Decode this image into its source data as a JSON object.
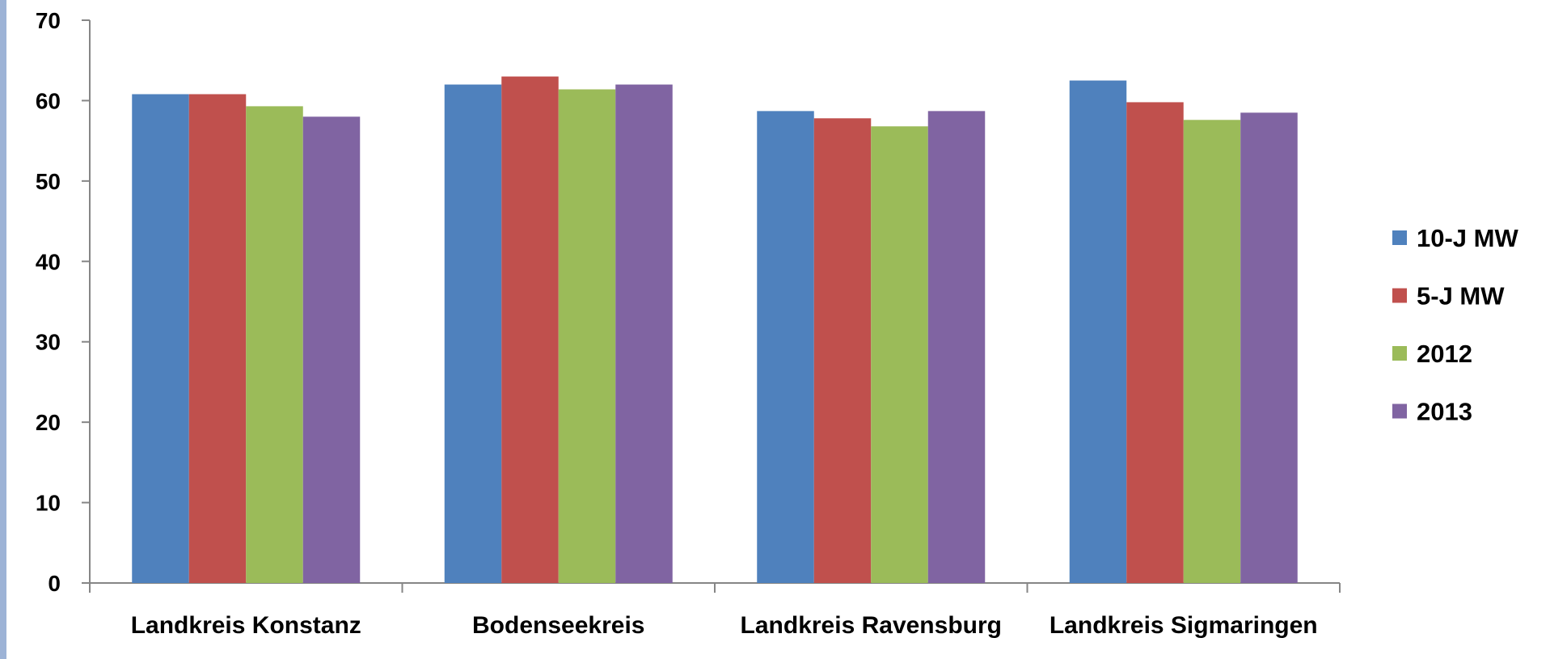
{
  "chart_data": {
    "type": "bar",
    "title": "",
    "xlabel": "",
    "ylabel": "",
    "ylim": [
      0,
      70
    ],
    "yticks": [
      0,
      10,
      20,
      30,
      40,
      50,
      60,
      70
    ],
    "grid": false,
    "legend_position": "right",
    "categories": [
      "Landkreis Konstanz",
      "Bodenseekreis",
      "Landkreis Ravensburg",
      "Landkreis Sigmaringen"
    ],
    "series": [
      {
        "name": "10-J MW",
        "color": "#4F81BD",
        "values": [
          60.8,
          62.0,
          58.7,
          62.5
        ]
      },
      {
        "name": "5-J MW",
        "color": "#C0504D",
        "values": [
          60.8,
          63.0,
          57.8,
          59.8
        ]
      },
      {
        "name": "2012",
        "color": "#9BBB59",
        "values": [
          59.3,
          61.4,
          56.8,
          57.6
        ]
      },
      {
        "name": "2013",
        "color": "#8064A2",
        "values": [
          58.0,
          62.0,
          58.7,
          58.5
        ]
      }
    ]
  }
}
